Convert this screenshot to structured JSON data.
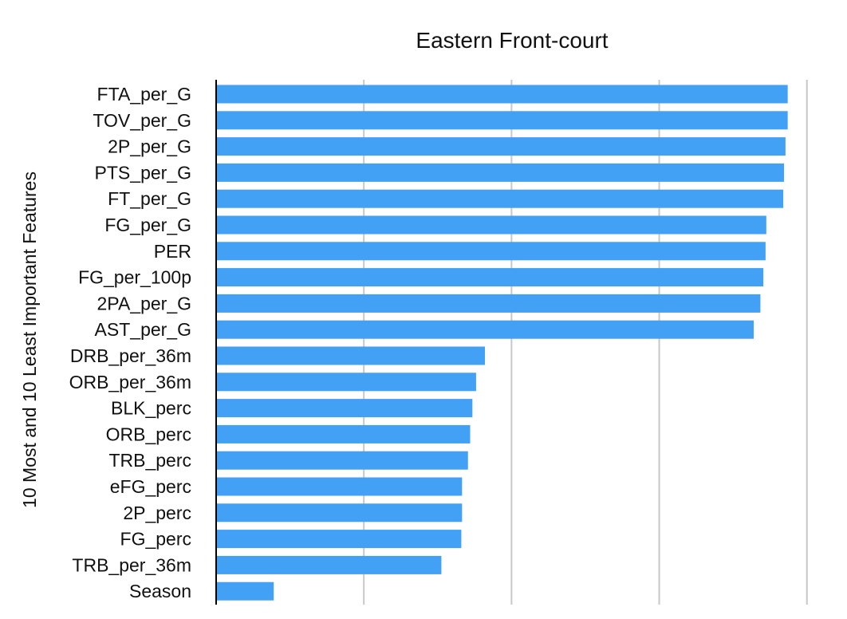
{
  "chart_data": {
    "type": "bar",
    "orientation": "horizontal",
    "title": "Eastern Front-court",
    "xlabel": "",
    "ylabel": "10 Most and 10 Least Important Features",
    "categories": [
      "FTA_per_G",
      "TOV_per_G",
      "2P_per_G",
      "PTS_per_G",
      "FT_per_G",
      "FG_per_G",
      "PER",
      "FG_per_100p",
      "2PA_per_G",
      "AST_per_G",
      "DRB_per_36m",
      "ORB_per_36m",
      "BLK_perc",
      "ORB_perc",
      "TRB_perc",
      "eFG_perc",
      "2P_perc",
      "FG_perc",
      "TRB_per_36m",
      "Season"
    ],
    "values": [
      3.87,
      3.87,
      3.855,
      3.845,
      3.84,
      3.725,
      3.72,
      3.705,
      3.685,
      3.64,
      1.82,
      1.76,
      1.735,
      1.72,
      1.705,
      1.665,
      1.665,
      1.66,
      1.525,
      0.39
    ],
    "xlim": [
      0,
      4.05
    ],
    "grid": true,
    "grid_ticks": [
      1,
      2,
      3,
      4
    ],
    "tick_labels_shown": false,
    "colors": {
      "bar": "#42a0f5",
      "grid": "#c8c8c8",
      "axis": "#000000"
    }
  }
}
